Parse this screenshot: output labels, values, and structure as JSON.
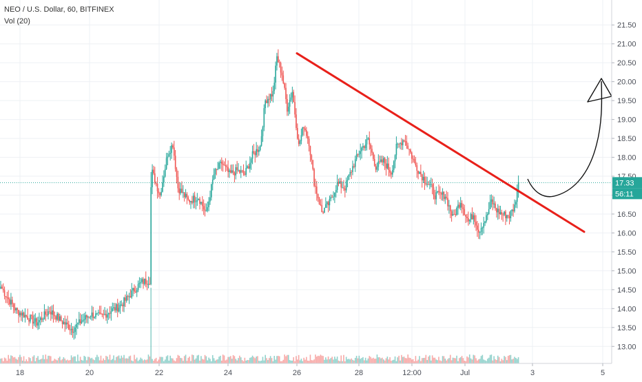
{
  "header": {
    "symbol": "NEO / U.S. Dollar, 60, BITFINEX",
    "volume_label": "Vol (20)"
  },
  "colors": {
    "up": "#26a69a",
    "down": "#ef5350",
    "trendline": "#e8201a",
    "drawing": "#111111",
    "grid": "#eef0f4",
    "price_line": "#26a69a"
  },
  "chart_data": {
    "type": "candlestick",
    "y_axis": {
      "ticks": [
        "13.00",
        "13.50",
        "14.00",
        "14.50",
        "15.00",
        "15.50",
        "16.00",
        "16.50",
        "17.00",
        "17.50",
        "18.00",
        "18.50",
        "19.00",
        "19.50",
        "20.00",
        "20.50",
        "21.00",
        "21.50"
      ],
      "range": [
        12.55,
        21.85
      ]
    },
    "x_axis": {
      "ticks": [
        "18",
        "20",
        "22",
        "24",
        "26",
        "28",
        "12:00",
        "Jul",
        "3",
        "5"
      ]
    },
    "last_price": "17.33",
    "countdown": "56:11",
    "anchors": [
      [
        0,
        14.58
      ],
      [
        6,
        14.25
      ],
      [
        12,
        13.95
      ],
      [
        20,
        13.8
      ],
      [
        28,
        13.62
      ],
      [
        38,
        13.95
      ],
      [
        48,
        13.65
      ],
      [
        56,
        13.45
      ],
      [
        62,
        13.65
      ],
      [
        70,
        13.85
      ],
      [
        78,
        13.78
      ],
      [
        86,
        13.95
      ],
      [
        92,
        14.05
      ],
      [
        98,
        14.25
      ],
      [
        104,
        14.5
      ],
      [
        110,
        14.7
      ],
      [
        116,
        14.75
      ],
      [
        117,
        17.2
      ],
      [
        118,
        17.6
      ],
      [
        124,
        17.0
      ],
      [
        130,
        18.1
      ],
      [
        134,
        18.35
      ],
      [
        138,
        17.2
      ],
      [
        146,
        16.85
      ],
      [
        154,
        16.95
      ],
      [
        160,
        16.5
      ],
      [
        166,
        17.55
      ],
      [
        172,
        17.85
      ],
      [
        178,
        17.55
      ],
      [
        184,
        17.65
      ],
      [
        190,
        17.55
      ],
      [
        196,
        18.05
      ],
      [
        202,
        18.3
      ],
      [
        206,
        19.5
      ],
      [
        212,
        19.7
      ],
      [
        215,
        20.65
      ],
      [
        219,
        20.2
      ],
      [
        223,
        19.3
      ],
      [
        227,
        19.75
      ],
      [
        232,
        18.3
      ],
      [
        236,
        18.85
      ],
      [
        240,
        18.4
      ],
      [
        244,
        17.35
      ],
      [
        250,
        16.55
      ],
      [
        256,
        16.8
      ],
      [
        262,
        17.3
      ],
      [
        268,
        17.2
      ],
      [
        274,
        17.75
      ],
      [
        280,
        18.2
      ],
      [
        286,
        18.45
      ],
      [
        292,
        17.75
      ],
      [
        298,
        17.9
      ],
      [
        304,
        17.6
      ],
      [
        308,
        18.25
      ],
      [
        314,
        18.5
      ],
      [
        318,
        18.2
      ],
      [
        322,
        17.85
      ],
      [
        328,
        17.5
      ],
      [
        334,
        17.25
      ],
      [
        338,
        17.0
      ],
      [
        346,
        17.0
      ],
      [
        352,
        16.4
      ],
      [
        358,
        16.85
      ],
      [
        364,
        16.3
      ],
      [
        368,
        16.5
      ],
      [
        372,
        16.05
      ],
      [
        378,
        16.4
      ],
      [
        382,
        16.85
      ],
      [
        386,
        16.6
      ],
      [
        390,
        16.5
      ],
      [
        396,
        16.45
      ],
      [
        400,
        16.7
      ],
      [
        403,
        17.33
      ]
    ],
    "annotations": {
      "trendline": {
        "from": [
          "26",
          20.75
        ],
        "to": [
          "5",
          16.03
        ]
      },
      "arrow": "hand-drawn curved arrow pointing up toward 19.75"
    }
  }
}
